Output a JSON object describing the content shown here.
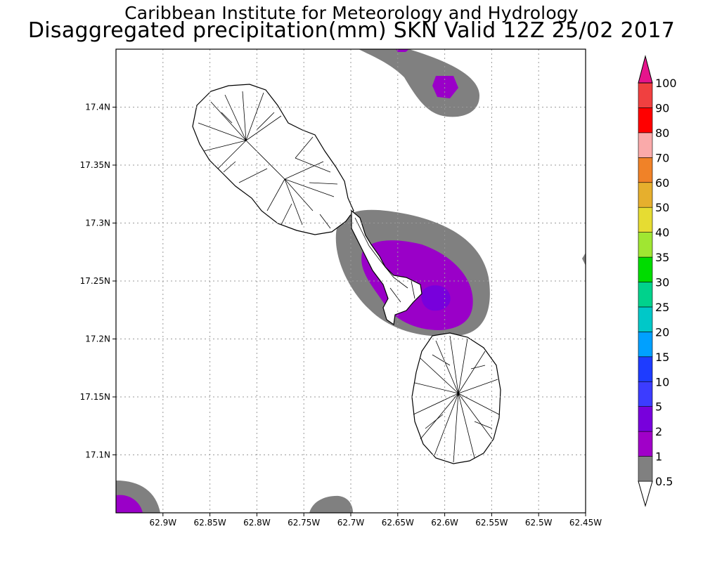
{
  "title": {
    "line1": "Caribbean Institute for Meteorology and Hydrology",
    "line2": "Disaggregated precipitation(mm) SKN Valid 12Z 25/02 2017"
  },
  "map": {
    "lon_range": [
      -62.95,
      -62.45
    ],
    "lat_range": [
      17.05,
      17.45
    ],
    "lon_ticks": [
      {
        "v": -62.9,
        "label": "62.9W"
      },
      {
        "v": -62.85,
        "label": "62.85W"
      },
      {
        "v": -62.8,
        "label": "62.8W"
      },
      {
        "v": -62.75,
        "label": "62.75W"
      },
      {
        "v": -62.7,
        "label": "62.7W"
      },
      {
        "v": -62.65,
        "label": "62.65W"
      },
      {
        "v": -62.6,
        "label": "62.6W"
      },
      {
        "v": -62.55,
        "label": "62.55W"
      },
      {
        "v": -62.5,
        "label": "62.5W"
      },
      {
        "v": -62.45,
        "label": "62.45W"
      }
    ],
    "lat_ticks": [
      {
        "v": 17.1,
        "label": "17.1N"
      },
      {
        "v": 17.15,
        "label": "17.15N"
      },
      {
        "v": 17.2,
        "label": "17.2N"
      },
      {
        "v": 17.25,
        "label": "17.25N"
      },
      {
        "v": 17.3,
        "label": "17.3N"
      },
      {
        "v": 17.35,
        "label": "17.35N"
      },
      {
        "v": 17.4,
        "label": "17.4N"
      }
    ],
    "grid": true,
    "colors": {
      "lt1": "#808080",
      "1to2": "#9a00c8",
      "2to5": "#7800dc",
      "land": "#ffffff",
      "coast": "#000000"
    }
  },
  "colorbar": {
    "levels": [
      "0.5",
      "1",
      "2",
      "5",
      "10",
      "15",
      "20",
      "25",
      "30",
      "35",
      "40",
      "50",
      "60",
      "70",
      "80",
      "90",
      "100"
    ],
    "colors": [
      "#808080",
      "#a000c8",
      "#7800dc",
      "#3c3cff",
      "#1e3cff",
      "#00a0ff",
      "#00c8c8",
      "#00d28c",
      "#00dc00",
      "#a0e632",
      "#e6dc32",
      "#e6af2d",
      "#f08228",
      "#faaaaa",
      "#ff0000",
      "#f04040",
      "#e6148c"
    ]
  }
}
